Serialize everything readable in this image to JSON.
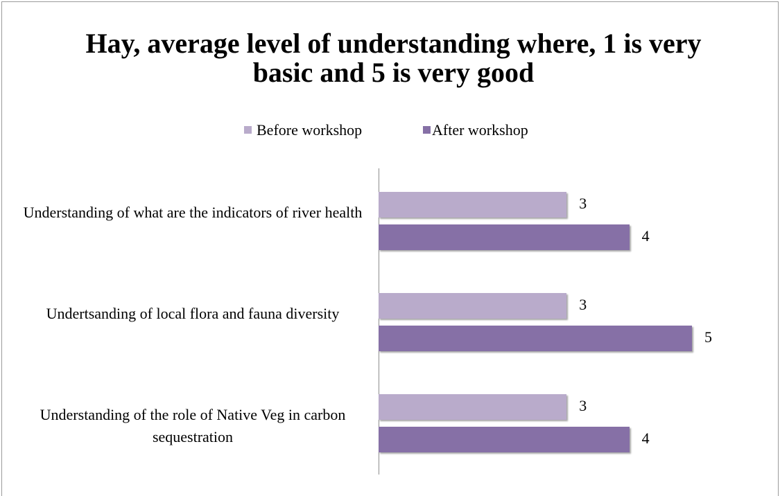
{
  "chart_data": {
    "type": "bar",
    "orientation": "horizontal",
    "title": "Hay, average level of understanding where, 1 is very basic and 5 is very good",
    "categories": [
      "Understanding of what are the indicators of river health",
      "Undertsanding of local flora and fauna diversity",
      "Understanding of the role of Native Veg in carbon sequestration"
    ],
    "series": [
      {
        "name": "Before workshop",
        "color": "#b9abcb",
        "values": [
          3,
          3,
          3
        ]
      },
      {
        "name": "After workshop",
        "color": "#8670a6",
        "values": [
          4,
          5,
          4
        ]
      }
    ],
    "xlim": [
      0,
      5
    ],
    "legend": "top"
  }
}
